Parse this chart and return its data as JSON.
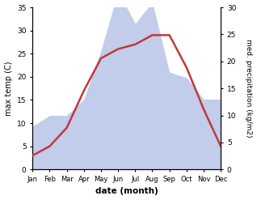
{
  "months": [
    "Jan",
    "Feb",
    "Mar",
    "Apr",
    "May",
    "Jun",
    "Jul",
    "Aug",
    "Sep",
    "Oct",
    "Nov",
    "Dec"
  ],
  "temperature": [
    3,
    5,
    9,
    17,
    24,
    26,
    27,
    29,
    29,
    22,
    13,
    5
  ],
  "precipitation": [
    8,
    10,
    10,
    13,
    22,
    33,
    27,
    31,
    18,
    17,
    13,
    13
  ],
  "temp_color": "#c0393b",
  "precip_fill_color": "#b8c4e8",
  "ylabel_left": "max temp (C)",
  "ylabel_right": "med. precipitation (kg/m2)",
  "xlabel": "date (month)",
  "ylim_left": [
    0,
    35
  ],
  "ylim_right": [
    0,
    30
  ],
  "bg_color": "#ffffff"
}
